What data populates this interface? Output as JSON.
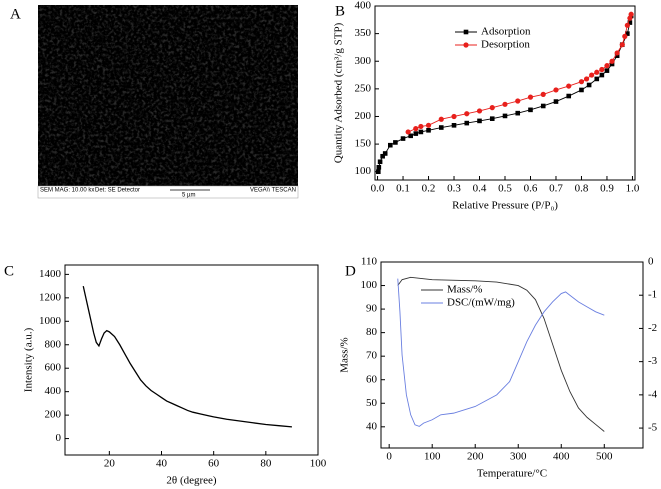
{
  "sem_image": {
    "panel_label": "A",
    "caption": [
      "SEM MAG: 10.00 kx",
      "Det: SE Detector",
      "5 µm",
      "VEGA\\\\ TESCAN"
    ]
  },
  "chart_data": [
    {
      "type": "line",
      "panel_label": "B",
      "xlabel": "Relative Pressure (P/P₀)",
      "ylabel": "Quantity Adsorbed (cm³/g STP)",
      "xlim": [
        -0.01,
        1.01
      ],
      "xticks": [
        {
          "value": 0,
          "label": "0.0"
        },
        0.1,
        0.2,
        0.3,
        0.4,
        0.5,
        0.6,
        0.7,
        0.8,
        0.9,
        {
          "value": 1,
          "label": "1.0"
        }
      ],
      "ylim": [
        85,
        400
      ],
      "yticks": [
        100,
        150,
        200,
        250,
        300,
        350,
        400
      ],
      "legend": "upper-left",
      "series": [
        {
          "name": "Adsorption",
          "color": "#000000",
          "marker": "square",
          "x": [
            0.003,
            0.005,
            0.01,
            0.02,
            0.03,
            0.05,
            0.07,
            0.1,
            0.13,
            0.15,
            0.17,
            0.2,
            0.25,
            0.3,
            0.35,
            0.4,
            0.45,
            0.5,
            0.55,
            0.6,
            0.65,
            0.7,
            0.75,
            0.8,
            0.83,
            0.86,
            0.88,
            0.9,
            0.92,
            0.94,
            0.96,
            0.98,
            0.99,
            0.995
          ],
          "values": [
            100,
            108,
            118,
            128,
            133,
            148,
            153,
            160,
            165,
            169,
            172,
            175,
            180,
            184,
            188,
            192,
            196,
            201,
            206,
            212,
            219,
            227,
            237,
            248,
            257,
            268,
            275,
            283,
            295,
            310,
            330,
            350,
            370,
            382
          ]
        },
        {
          "name": "Desorption",
          "color": "#e8201c",
          "marker": "circle",
          "x": [
            0.995,
            0.99,
            0.98,
            0.97,
            0.96,
            0.94,
            0.92,
            0.9,
            0.88,
            0.86,
            0.84,
            0.82,
            0.8,
            0.75,
            0.7,
            0.65,
            0.6,
            0.55,
            0.5,
            0.45,
            0.4,
            0.35,
            0.3,
            0.25,
            0.2,
            0.17,
            0.15,
            0.12
          ],
          "values": [
            385,
            378,
            365,
            345,
            330,
            315,
            300,
            292,
            285,
            280,
            275,
            268,
            263,
            255,
            248,
            240,
            235,
            228,
            222,
            216,
            210,
            205,
            200,
            195,
            184,
            182,
            178,
            172
          ]
        }
      ]
    },
    {
      "type": "line",
      "panel_label": "C",
      "xlabel": "2θ (degree)",
      "ylabel": "Intensity (a.u.)",
      "xlim": [
        3,
        100
      ],
      "xticks": [
        20,
        40,
        60,
        80,
        100
      ],
      "ylim": [
        -140,
        1480
      ],
      "yticks": [
        0,
        200,
        400,
        600,
        800,
        1000,
        1200,
        1400
      ],
      "series": [
        {
          "color": "#000000",
          "x": [
            10,
            11,
            12,
            13,
            14,
            15,
            16,
            17,
            18,
            19,
            20,
            22,
            24,
            26,
            28,
            30,
            32,
            34,
            36,
            38,
            40,
            42,
            44,
            46,
            48,
            50,
            52,
            55,
            58,
            60,
            65,
            70,
            75,
            80,
            85,
            90
          ],
          "values": [
            1300,
            1200,
            1100,
            1000,
            900,
            820,
            790,
            850,
            900,
            920,
            910,
            870,
            800,
            720,
            640,
            570,
            500,
            450,
            410,
            380,
            350,
            320,
            300,
            280,
            260,
            240,
            225,
            210,
            195,
            185,
            165,
            150,
            135,
            120,
            110,
            100
          ]
        }
      ]
    },
    {
      "type": "line",
      "panel_label": "D",
      "xlabel": "Temperature/°C",
      "ylabel": "Mass/%",
      "y2label": "DSC/(mW/mg)",
      "xlim": [
        -19,
        590
      ],
      "xticks": [
        0,
        100,
        200,
        300,
        400,
        500
      ],
      "ylim": [
        31,
        110
      ],
      "yticks": [
        40,
        50,
        60,
        70,
        80,
        90,
        100,
        110
      ],
      "y2lim": [
        -5.6,
        0
      ],
      "y2ticks": [
        0,
        -1,
        -2,
        -3,
        -4,
        -5
      ],
      "legend": "upper-left",
      "series": [
        {
          "name": "Mass/%",
          "color": "#333333",
          "x": [
            20,
            30,
            50,
            100,
            200,
            250,
            300,
            320,
            340,
            360,
            380,
            400,
            420,
            440,
            460,
            480,
            500
          ],
          "values": [
            100,
            102.5,
            103.5,
            102.5,
            102,
            101.5,
            100,
            98,
            94,
            86,
            75,
            64,
            55,
            48,
            44,
            41,
            38
          ]
        },
        {
          "name": "DSC/(mW/mg)",
          "color": "#6a7fe0",
          "axis": "y2",
          "x": [
            20,
            25,
            30,
            40,
            50,
            60,
            70,
            80,
            100,
            120,
            150,
            200,
            250,
            280,
            300,
            320,
            340,
            360,
            380,
            400,
            410,
            420,
            440,
            460,
            480,
            500
          ],
          "values": [
            -0.5,
            -1.5,
            -2.8,
            -4,
            -4.6,
            -4.9,
            -4.95,
            -4.85,
            -4.75,
            -4.6,
            -4.55,
            -4.35,
            -4,
            -3.6,
            -3,
            -2.4,
            -1.9,
            -1.5,
            -1.2,
            -0.95,
            -0.9,
            -1,
            -1.2,
            -1.35,
            -1.5,
            -1.6
          ]
        }
      ]
    }
  ]
}
